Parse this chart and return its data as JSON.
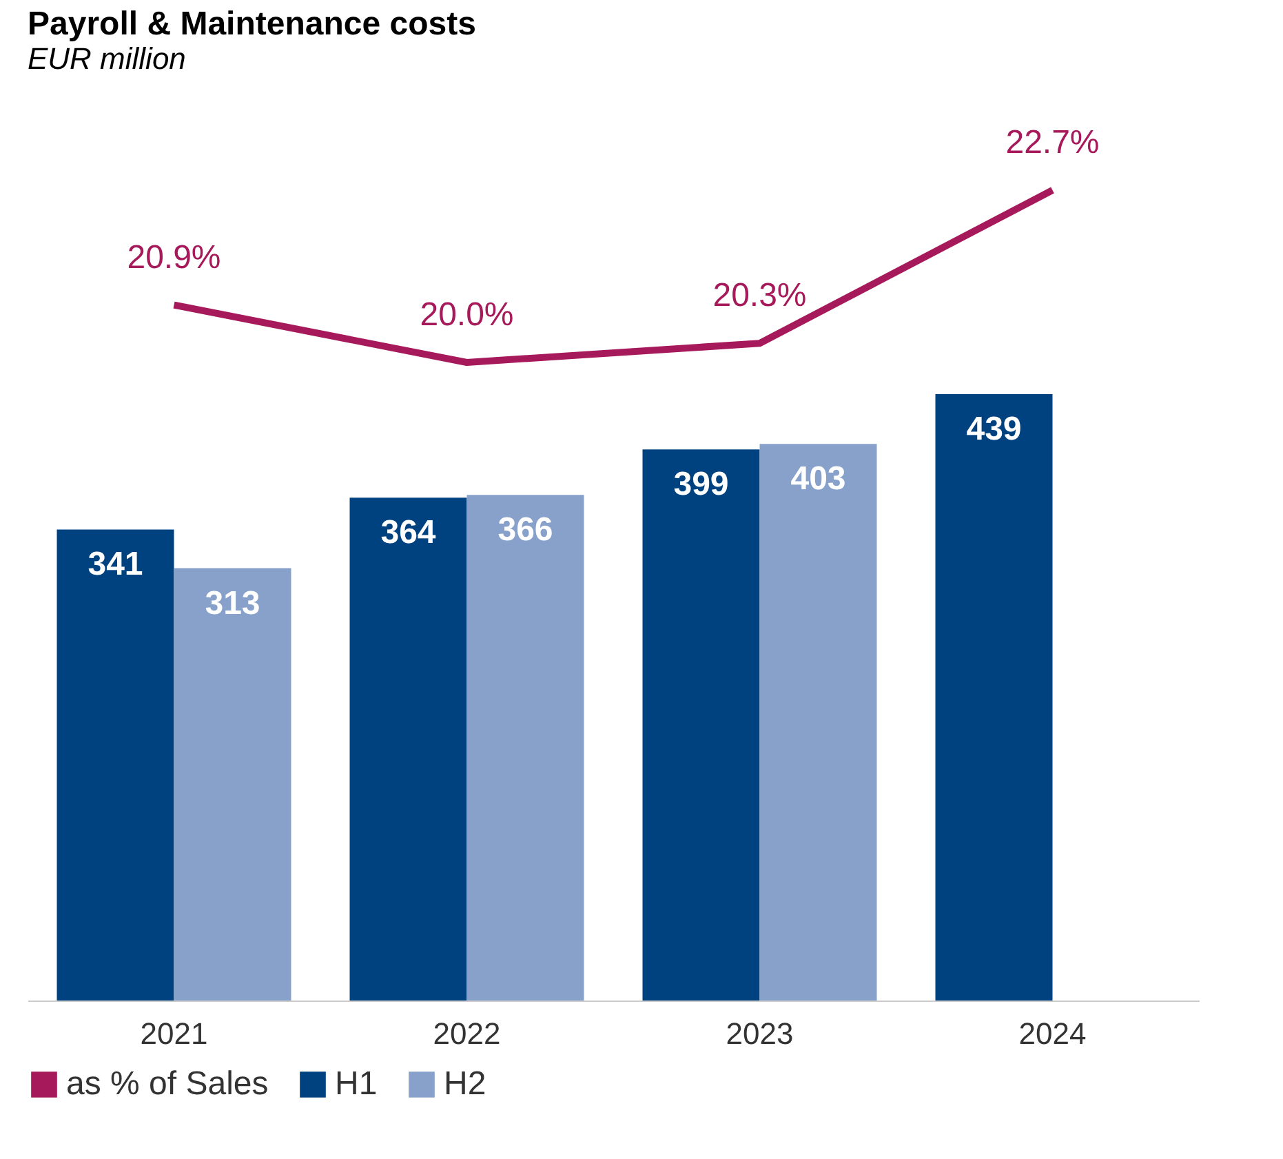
{
  "chart_data": [
    {
      "type": "line",
      "title": "Payroll & Maintenance costs",
      "subtitle": "EUR million",
      "categories": [
        "2021",
        "2022",
        "2023",
        "2024"
      ],
      "series": [
        {
          "name": "as % of Sales",
          "color": "#a6195a",
          "values": [
            20.9,
            20.0,
            20.3,
            22.7
          ],
          "value_labels": [
            "20.9%",
            "20.0%",
            "20.3%",
            "22.7%"
          ]
        }
      ],
      "tick_labels": false,
      "marker": "none"
    },
    {
      "type": "bar",
      "categories": [
        "2021",
        "2022",
        "2023",
        "2024"
      ],
      "series": [
        {
          "name": "H1",
          "color": "#00427f",
          "values": [
            341,
            364,
            399,
            439
          ]
        },
        {
          "name": "H2",
          "color": "#87a1cb",
          "values": [
            313,
            366,
            403,
            null
          ]
        }
      ],
      "tick_labels": "x",
      "data_labels": true,
      "legend": "bottom"
    }
  ]
}
